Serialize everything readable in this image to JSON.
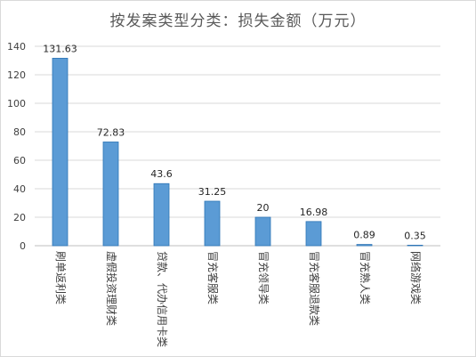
{
  "chart_data": {
    "type": "bar",
    "title": "按发案类型分类：损失金额（万元）",
    "categories": [
      "刷单返利类",
      "虚假投资理财类",
      "贷款、代办信用卡类",
      "冒充客服类",
      "冒充领导类",
      "冒充客服退款类",
      "冒充熟人类",
      "网络游戏类"
    ],
    "values": [
      131.63,
      72.83,
      43.6,
      31.25,
      20,
      16.98,
      0.89,
      0.35
    ],
    "value_labels": [
      "131.63",
      "72.83",
      "43.6",
      "31.25",
      "20",
      "16.98",
      "0.89",
      "0.35"
    ],
    "ylim": [
      0,
      140
    ],
    "yticks": [
      0,
      20,
      40,
      60,
      80,
      100,
      120,
      140
    ],
    "grid": true,
    "legend": "none",
    "xlabel": "",
    "ylabel": "",
    "colors": {
      "bar": "#5b9bd5",
      "bar_edge": "#2e75b6",
      "grid": "#d9d9d9",
      "axis": "#bfbfbf"
    }
  }
}
